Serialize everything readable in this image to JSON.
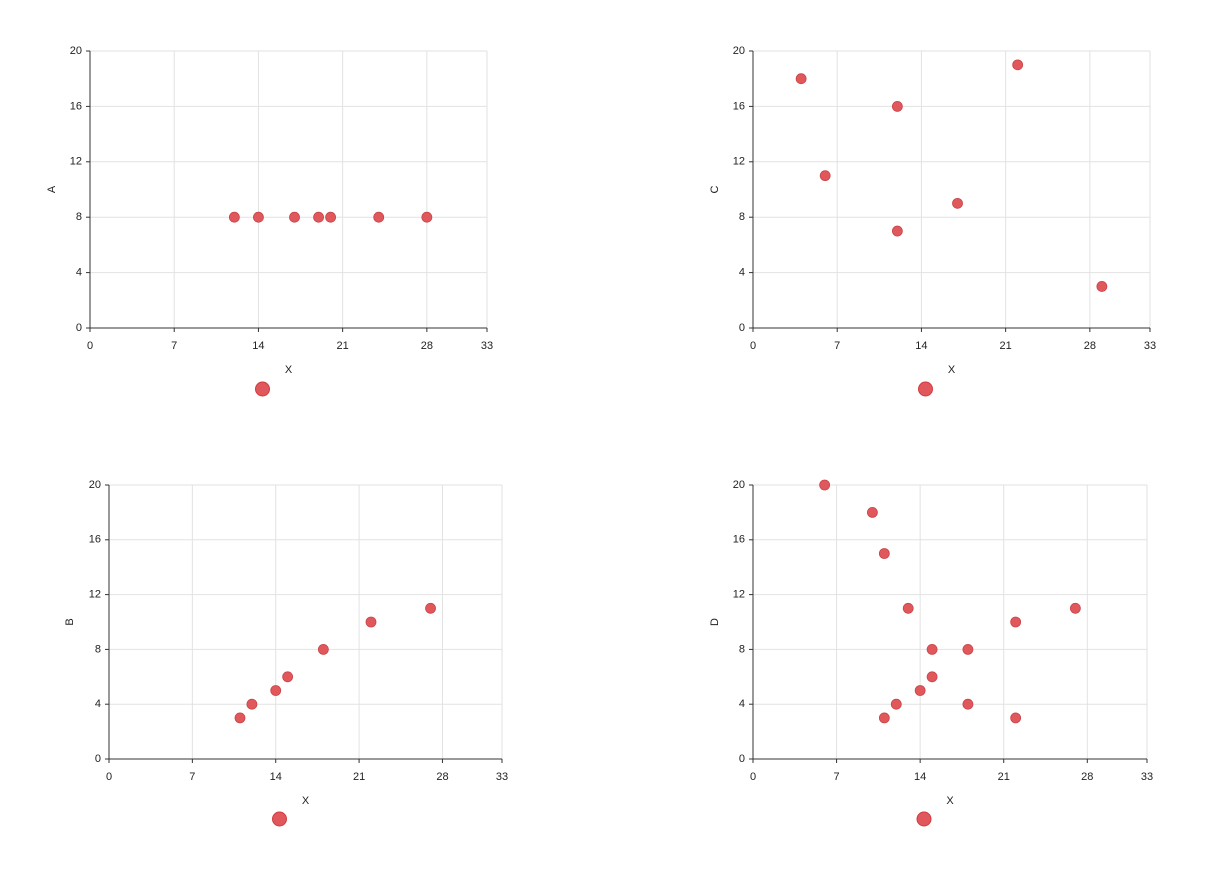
{
  "chart_data": [
    {
      "type": "scatter",
      "x_label": "X",
      "y_label": "A",
      "color": "#e0585c",
      "x": [
        12,
        14,
        17,
        19,
        20,
        24,
        28
      ],
      "values": [
        8,
        8,
        8,
        8,
        8,
        8,
        8
      ],
      "xlim": [
        0,
        33
      ],
      "xticks": [
        0,
        7,
        14,
        21,
        28,
        33
      ],
      "ylim": [
        0,
        20
      ],
      "yticks": [
        0,
        4,
        8,
        12,
        16,
        20
      ],
      "grid": true
    },
    {
      "type": "scatter",
      "x_label": "X",
      "y_label": "C",
      "color": "#e0585c",
      "x": [
        4,
        6,
        12,
        12,
        17,
        22,
        29
      ],
      "values": [
        18,
        11,
        16,
        7,
        9,
        19,
        3
      ],
      "xlim": [
        0,
        33
      ],
      "xticks": [
        0,
        7,
        14,
        21,
        28,
        33
      ],
      "ylim": [
        0,
        20
      ],
      "yticks": [
        0,
        4,
        8,
        12,
        16,
        20
      ],
      "grid": true
    },
    {
      "type": "scatter",
      "x_label": "X",
      "y_label": "B",
      "color": "#e0585c",
      "x": [
        11,
        12,
        14,
        15,
        18,
        22,
        27
      ],
      "values": [
        3,
        4,
        5,
        6,
        8,
        10,
        11
      ],
      "xlim": [
        0,
        33
      ],
      "xticks": [
        0,
        7,
        14,
        21,
        28,
        33
      ],
      "ylim": [
        0,
        20
      ],
      "yticks": [
        0,
        4,
        8,
        12,
        16,
        20
      ],
      "grid": true
    },
    {
      "type": "scatter",
      "x_label": "X",
      "y_label": "D",
      "color": "#e0585c",
      "x": [
        6,
        10,
        11,
        13,
        15,
        15,
        14,
        12,
        11,
        18,
        18,
        22,
        22,
        27
      ],
      "values": [
        20,
        18,
        15,
        11,
        8,
        6,
        5,
        4,
        3,
        8,
        4,
        10,
        3,
        11
      ],
      "xlim": [
        0,
        33
      ],
      "xticks": [
        0,
        7,
        14,
        21,
        28,
        33
      ],
      "ylim": [
        0,
        20
      ],
      "yticks": [
        0,
        4,
        8,
        12,
        16,
        20
      ],
      "grid": true
    }
  ]
}
